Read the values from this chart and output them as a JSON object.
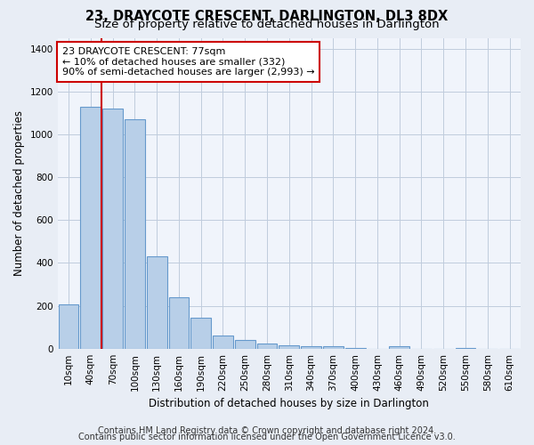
{
  "title": "23, DRAYCOTE CRESCENT, DARLINGTON, DL3 8DX",
  "subtitle": "Size of property relative to detached houses in Darlington",
  "xlabel": "Distribution of detached houses by size in Darlington",
  "ylabel": "Number of detached properties",
  "categories": [
    "10sqm",
    "40sqm",
    "70sqm",
    "100sqm",
    "130sqm",
    "160sqm",
    "190sqm",
    "220sqm",
    "250sqm",
    "280sqm",
    "310sqm",
    "340sqm",
    "370sqm",
    "400sqm",
    "430sqm",
    "460sqm",
    "490sqm",
    "520sqm",
    "550sqm",
    "580sqm",
    "610sqm"
  ],
  "values": [
    205,
    1130,
    1120,
    1070,
    430,
    240,
    145,
    60,
    40,
    25,
    15,
    10,
    10,
    5,
    0,
    10,
    0,
    0,
    5,
    0,
    0
  ],
  "bar_color": "#b8cfe8",
  "bar_edge_color": "#6699cc",
  "vline_color": "#cc0000",
  "vline_pos": 1.5,
  "annotation_line1": "23 DRAYCOTE CRESCENT: 77sqm",
  "annotation_line2": "← 10% of detached houses are smaller (332)",
  "annotation_line3": "90% of semi-detached houses are larger (2,993) →",
  "annotation_box_color": "#ffffff",
  "annotation_box_edge": "#cc0000",
  "ylim": [
    0,
    1450
  ],
  "yticks": [
    0,
    200,
    400,
    600,
    800,
    1000,
    1200,
    1400
  ],
  "footer1": "Contains HM Land Registry data © Crown copyright and database right 2024.",
  "footer2": "Contains public sector information licensed under the Open Government Licence v3.0.",
  "bg_color": "#e8edf5",
  "plot_bg_color": "#f0f4fb",
  "title_fontsize": 10.5,
  "subtitle_fontsize": 9.5,
  "tick_fontsize": 7.5,
  "label_fontsize": 8.5,
  "annot_fontsize": 8,
  "footer_fontsize": 7
}
